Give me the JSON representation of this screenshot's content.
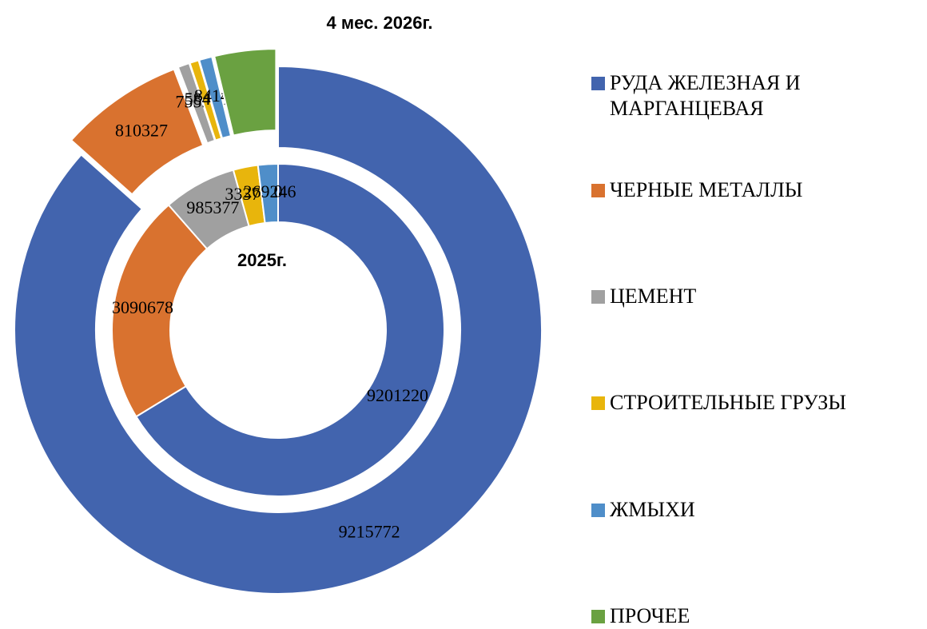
{
  "chart_data": {
    "type": "donut",
    "categories": [
      "РУДА ЖЕЛЕЗНАЯ И МАРГАНЦЕВАЯ",
      "ЧЕРНЫЕ МЕТАЛЛЫ",
      "ЦЕМЕНТ",
      "СТРОИТЕЛЬНЫЕ ГРУЗЫ",
      "ЖМЫХИ",
      "ПРОЧЕЕ"
    ],
    "colors": [
      "#4264ae",
      "#d9722f",
      "#a0a0a0",
      "#e8b50c",
      "#4f8ec9",
      "#6aa141"
    ],
    "series": [
      {
        "name": "2025г.",
        "values": [
          9201220,
          3090678,
          985377,
          333756,
          269246,
          0
        ]
      },
      {
        "name": "4 мес. 2026г.",
        "values": [
          9215772,
          810327,
          75591,
          58405,
          84140,
          400000
        ],
        "value_labels": [
          "9215772",
          "810327",
          "75591",
          "58405",
          "84140",
          null
        ]
      }
    ],
    "legend": "right"
  }
}
